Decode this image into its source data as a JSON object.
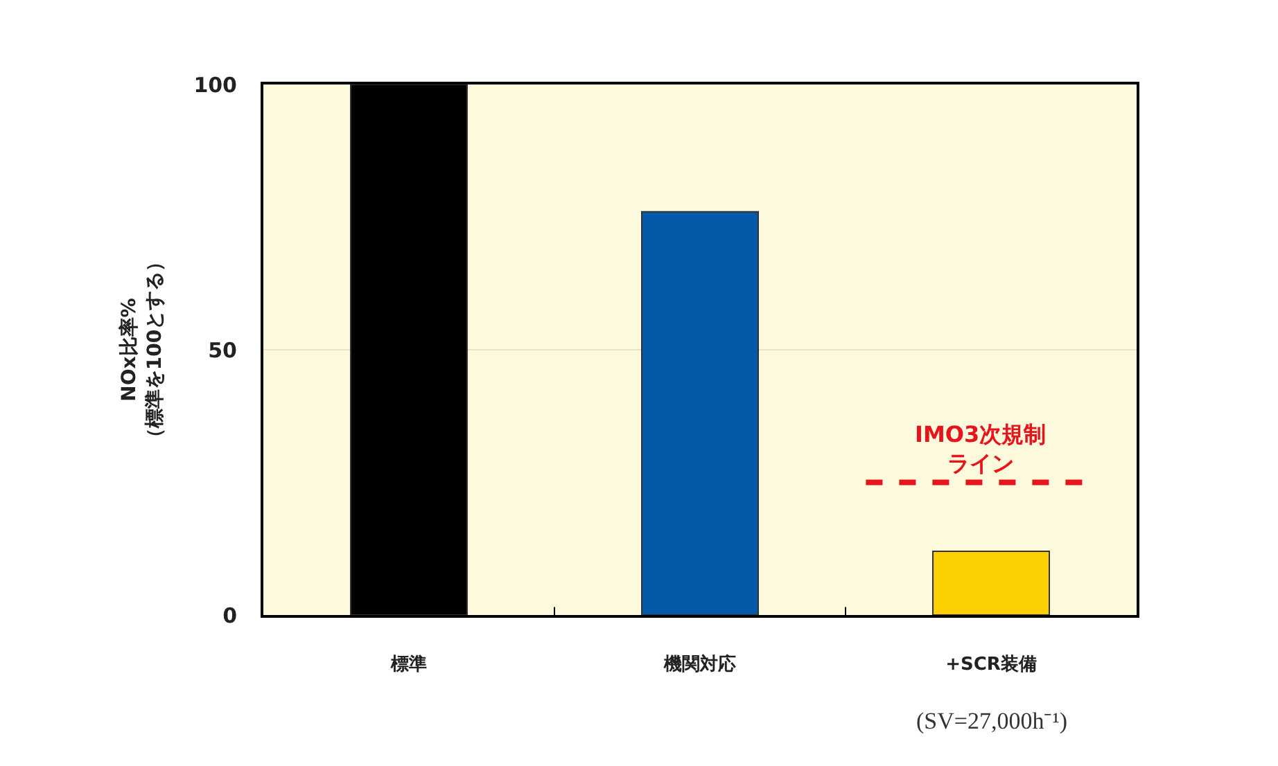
{
  "chart_data": {
    "type": "bar",
    "ylabel": "NOx比率%\n（標準を100とする）",
    "categories": [
      "標準",
      "機関対応",
      "+SCR装備"
    ],
    "values": [
      100,
      76,
      12
    ],
    "colors": [
      "#000000",
      "#045aa8",
      "#fcd000"
    ],
    "ylim": [
      0,
      100
    ],
    "yticks": [
      0,
      50,
      100
    ],
    "grid": "y",
    "legend": false,
    "ref_lines": [
      {
        "axis": "y",
        "value": 25,
        "label": "IMO3次規制ライン",
        "color": "#e8141c",
        "line_style": "dashed"
      }
    ],
    "annotations": [
      "(SV=27,000h⁻¹)"
    ]
  }
}
